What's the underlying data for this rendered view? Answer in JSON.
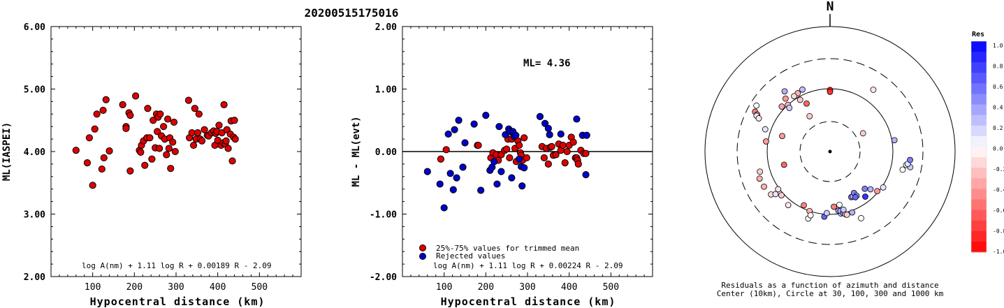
{
  "event_id": "20200515175016",
  "chart_data": [
    {
      "type": "scatter",
      "xlabel": "Hypocentral distance (km)",
      "ylabel": "ML(IASPEI)",
      "xlim": [
        0,
        600
      ],
      "ylim": [
        2.0,
        6.0
      ],
      "xticks": [
        "100",
        "200",
        "300",
        "400",
        "500"
      ],
      "yticks": [
        "2.00",
        "3.00",
        "4.00",
        "5.00",
        "6.00"
      ],
      "formula": "log A(nm) + 1.11 log R + 0.00189 R - 2.09",
      "series": [
        {
          "color": "#dd0000",
          "points": [
            [
              60,
              4.02
            ],
            [
              87,
              3.82
            ],
            [
              92,
              4.22
            ],
            [
              100,
              3.46
            ],
            [
              105,
              4.36
            ],
            [
              110,
              4.6
            ],
            [
              122,
              3.72
            ],
            [
              125,
              4.66
            ],
            [
              127,
              3.9
            ],
            [
              132,
              4.83
            ],
            [
              140,
              4.01
            ],
            [
              172,
              4.75
            ],
            [
              180,
              4.4
            ],
            [
              180,
              4.37
            ],
            [
              187,
              4.62
            ],
            [
              190,
              3.69
            ],
            [
              190,
              4.58
            ],
            [
              203,
              4.89
            ],
            [
              212,
              4.02
            ],
            [
              215,
              3.99
            ],
            [
              217,
              4.1
            ],
            [
              222,
              4.17
            ],
            [
              225,
              3.78
            ],
            [
              230,
              4.22
            ],
            [
              232,
              4.69
            ],
            [
              237,
              4.22
            ],
            [
              242,
              3.88
            ],
            [
              245,
              4.5
            ],
            [
              250,
              4.06
            ],
            [
              253,
              4.6
            ],
            [
              255,
              4.32
            ],
            [
              257,
              4.55
            ],
            [
              260,
              4.05
            ],
            [
              262,
              4.6
            ],
            [
              265,
              4.25
            ],
            [
              270,
              4.4
            ],
            [
              273,
              4.2
            ],
            [
              277,
              3.95
            ],
            [
              280,
              4.52
            ],
            [
              283,
              4.05
            ],
            [
              285,
              4.22
            ],
            [
              287,
              3.73
            ],
            [
              292,
              4.15
            ],
            [
              295,
              4.47
            ],
            [
              298,
              4.0
            ],
            [
              330,
              4.82
            ],
            [
              332,
              4.22
            ],
            [
              338,
              4.3
            ],
            [
              342,
              4.1
            ],
            [
              345,
              4.69
            ],
            [
              348,
              4.2
            ],
            [
              352,
              4.3
            ],
            [
              355,
              4.6
            ],
            [
              358,
              4.2
            ],
            [
              362,
              4.17
            ],
            [
              368,
              4.35
            ],
            [
              375,
              4.26
            ],
            [
              378,
              4.25
            ],
            [
              385,
              4.3
            ],
            [
              390,
              4.33
            ],
            [
              393,
              4.1
            ],
            [
              395,
              4.29
            ],
            [
              398,
              4.32
            ],
            [
              400,
              4.18
            ],
            [
              403,
              4.42
            ],
            [
              408,
              4.1
            ],
            [
              410,
              4.3
            ],
            [
              413,
              4.14
            ],
            [
              415,
              4.75
            ],
            [
              418,
              4.12
            ],
            [
              420,
              4.17
            ],
            [
              422,
              4.35
            ],
            [
              425,
              4.05
            ],
            [
              430,
              4.28
            ],
            [
              432,
              4.49
            ],
            [
              435,
              3.85
            ],
            [
              438,
              4.23
            ],
            [
              440,
              4.5
            ],
            [
              442,
              4.2
            ]
          ]
        }
      ]
    },
    {
      "type": "scatter",
      "xlabel": "Hypocentral distance (km)",
      "ylabel": "ML - ML(evt)",
      "xlim": [
        0,
        600
      ],
      "ylim": [
        -2.0,
        2.0
      ],
      "xticks": [
        "100",
        "200",
        "300",
        "400",
        "500"
      ],
      "yticks": [
        "-2.00",
        "-1.00",
        "0.00",
        "1.00",
        "2.00"
      ],
      "annotation": "ML= 4.36",
      "formula": "log A(nm) + 1.11 log R + 0.00224 R - 2.09",
      "legend": [
        "25%-75% values for trimmed mean",
        "Rejected values"
      ],
      "series": [
        {
          "name": "25%-75% values for trimmed mean",
          "color": "#dd0000",
          "points": [
            [
              92,
              -0.12
            ],
            [
              105,
              0.03
            ],
            [
              180,
              0.1
            ],
            [
              182,
              0.1
            ],
            [
              212,
              -0.1
            ],
            [
              217,
              -0.02
            ],
            [
              225,
              -0.05
            ],
            [
              230,
              -0.14
            ],
            [
              237,
              -0.05
            ],
            [
              245,
              0.02
            ],
            [
              250,
              0.04
            ],
            [
              253,
              0.2
            ],
            [
              257,
              -0.1
            ],
            [
              262,
              0.2
            ],
            [
              265,
              0.3
            ],
            [
              270,
              0.05
            ],
            [
              273,
              -0.16
            ],
            [
              277,
              0.17
            ],
            [
              280,
              0.1
            ],
            [
              283,
              -0.02
            ],
            [
              285,
              -0.06
            ],
            [
              288,
              -0.14
            ],
            [
              292,
              0.22
            ],
            [
              298,
              -0.1
            ],
            [
              335,
              0.08
            ],
            [
              340,
              -0.1
            ],
            [
              345,
              0.05
            ],
            [
              350,
              -0.2
            ],
            [
              355,
              0.07
            ],
            [
              358,
              0.08
            ],
            [
              362,
              -0.06
            ],
            [
              368,
              -0.05
            ],
            [
              375,
              0.12
            ],
            [
              380,
              0.02
            ],
            [
              385,
              0.1
            ],
            [
              390,
              -0.18
            ],
            [
              395,
              0.0
            ],
            [
              400,
              0.1
            ],
            [
              405,
              0.23
            ],
            [
              410,
              0.15
            ],
            [
              415,
              -0.1
            ],
            [
              418,
              -0.1
            ],
            [
              420,
              -0.14
            ],
            [
              422,
              -0.2
            ],
            [
              428,
              0.02
            ],
            [
              435,
              -0.03
            ],
            [
              440,
              -0.03
            ]
          ]
        },
        {
          "name": "Rejected values",
          "color": "#0000cc",
          "points": [
            [
              60,
              -0.32
            ],
            [
              90,
              -0.52
            ],
            [
              100,
              -0.9
            ],
            [
              110,
              0.28
            ],
            [
              115,
              -0.35
            ],
            [
              122,
              -0.61
            ],
            [
              125,
              0.35
            ],
            [
              130,
              -0.42
            ],
            [
              135,
              0.5
            ],
            [
              145,
              -0.25
            ],
            [
              150,
              0.14
            ],
            [
              172,
              0.44
            ],
            [
              188,
              -0.62
            ],
            [
              200,
              0.58
            ],
            [
              210,
              -0.3
            ],
            [
              215,
              -0.25
            ],
            [
              220,
              -0.16
            ],
            [
              227,
              -0.52
            ],
            [
              232,
              0.4
            ],
            [
              237,
              -0.32
            ],
            [
              247,
              0.27
            ],
            [
              255,
              0.36
            ],
            [
              258,
              0.32
            ],
            [
              262,
              -0.42
            ],
            [
              265,
              0.32
            ],
            [
              268,
              0.24
            ],
            [
              272,
              0.26
            ],
            [
              280,
              -0.12
            ],
            [
              285,
              -0.24
            ],
            [
              287,
              -0.55
            ],
            [
              292,
              -0.26
            ],
            [
              330,
              0.56
            ],
            [
              342,
              0.45
            ],
            [
              350,
              0.37
            ],
            [
              353,
              0.27
            ],
            [
              380,
              0.28
            ],
            [
              418,
              0.52
            ],
            [
              432,
              0.26
            ],
            [
              440,
              -0.37
            ],
            [
              442,
              0.26
            ]
          ]
        }
      ]
    },
    {
      "type": "polar",
      "north_label": "N",
      "caption_line1": "Residuals as a function of azimuth and distance",
      "caption_line2": "Center (10km), Circle at 30, 100, 300 and 1000 km",
      "colorbar": {
        "title": "Res",
        "ticks": [
          "1.0",
          "0.8",
          "0.6",
          "0.4",
          "0.2",
          "0.0",
          "-0.2",
          "-0.4",
          "-0.6",
          "-0.8",
          "-1.0"
        ]
      },
      "stations": [
        [
          0.0,
          0.98
        ],
        [
          0.0,
          0.95
        ],
        [
          336,
          1.08
        ],
        [
          331,
          1.06
        ],
        [
          334,
          0.85
        ],
        [
          327,
          1.05
        ],
        [
          330,
          0.95
        ],
        [
          330,
          0.65
        ],
        [
          323,
          1.2
        ],
        [
          320,
          1.1
        ],
        [
          318,
          1.0
        ],
        [
          317,
          0.95
        ],
        [
          313,
          1.05
        ],
        [
          302,
          1.38
        ],
        [
          298,
          1.35
        ],
        [
          297,
          1.3
        ],
        [
          296,
          1.3
        ],
        [
          295,
          1.25
        ],
        [
          289,
          1.09
        ],
        [
          279,
          1.03
        ],
        [
          288,
          0.8
        ],
        [
          254,
          1.16
        ],
        [
          249,
          1.2
        ],
        [
          254,
          0.76
        ],
        [
          242,
          1.19
        ],
        [
          234,
          1.16
        ],
        [
          232,
          1.1
        ],
        [
          234,
          1.02
        ],
        [
          228,
          1.04
        ],
        [
          218,
          1.08
        ],
        [
          206,
          0.95
        ],
        [
          199,
          1.0
        ],
        [
          198,
          1.12
        ],
        [
          197,
          1.06
        ],
        [
          185,
          1.04
        ],
        [
          183,
          0.98
        ],
        [
          176,
          0.88
        ],
        [
          170,
          1.0
        ],
        [
          172,
          0.95
        ],
        [
          170,
          0.96
        ],
        [
          168,
          1.0
        ],
        [
          167,
          0.95
        ],
        [
          170,
          0.86
        ],
        [
          166,
          1.03
        ],
        [
          160,
          1.03
        ],
        [
          165,
          1.04
        ],
        [
          155,
          0.8
        ],
        [
          155,
          1.17
        ],
        [
          153,
          0.8
        ],
        [
          150,
          0.76
        ],
        [
          149,
          0.82
        ],
        [
          151,
          0.83
        ],
        [
          142,
          0.91
        ],
        [
          137,
          0.81
        ],
        [
          133,
          0.88
        ],
        [
          130,
          0.98
        ],
        [
          124,
          1.02
        ],
        [
          104,
          1.19
        ],
        [
          100,
          1.23
        ],
        [
          101,
          1.3
        ],
        [
          99,
          1.25
        ],
        [
          96,
          1.28
        ],
        [
          80,
          1.04
        ],
        [
          61,
          0.6
        ],
        [
          35,
          1.2
        ]
      ]
    }
  ]
}
